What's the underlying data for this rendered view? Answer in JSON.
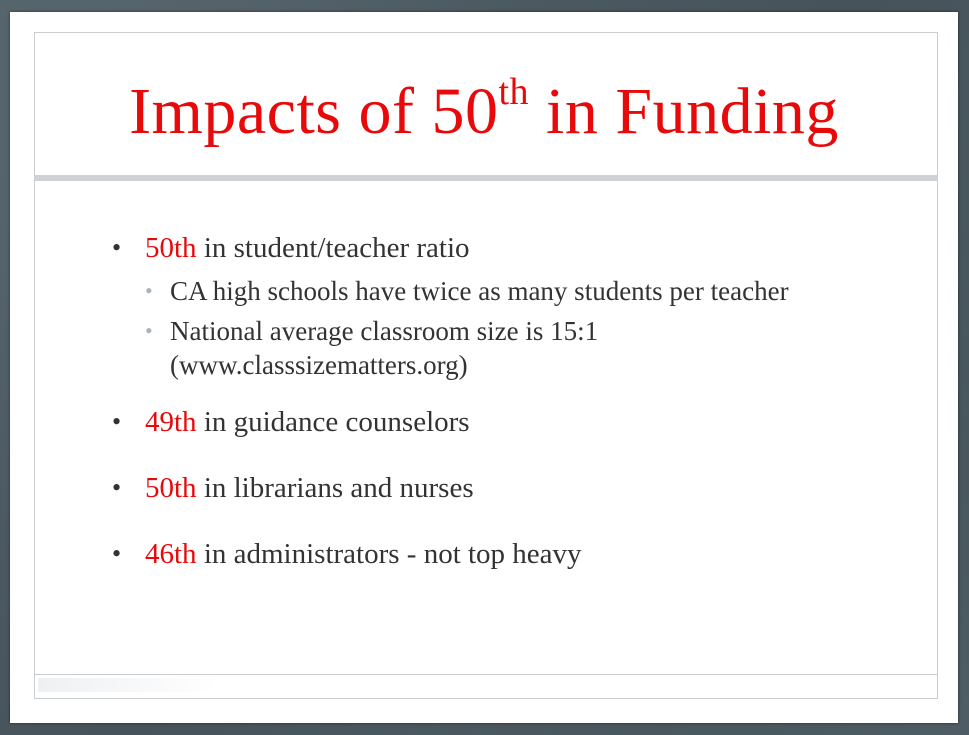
{
  "slide": {
    "title_main": "Impacts of 50",
    "title_sup": "th",
    "title_end": " in Funding"
  },
  "bullets": [
    {
      "highlight": "50th",
      "text": " in student/teacher ratio",
      "sub": [
        "CA high schools have twice as many students per teacher",
        "National average classroom size is 15:1 (www.classsizematters.org)"
      ]
    },
    {
      "highlight": "49th",
      "text": " in guidance counselors"
    },
    {
      "highlight": "50th",
      "text": " in librarians and nurses"
    },
    {
      "highlight": "46th",
      "text": " in administrators - not top heavy"
    }
  ],
  "colors": {
    "accent": "#e8090a",
    "text": "#333333",
    "sub_bullet": "#a9b6c1",
    "frame": "#4b5961"
  }
}
